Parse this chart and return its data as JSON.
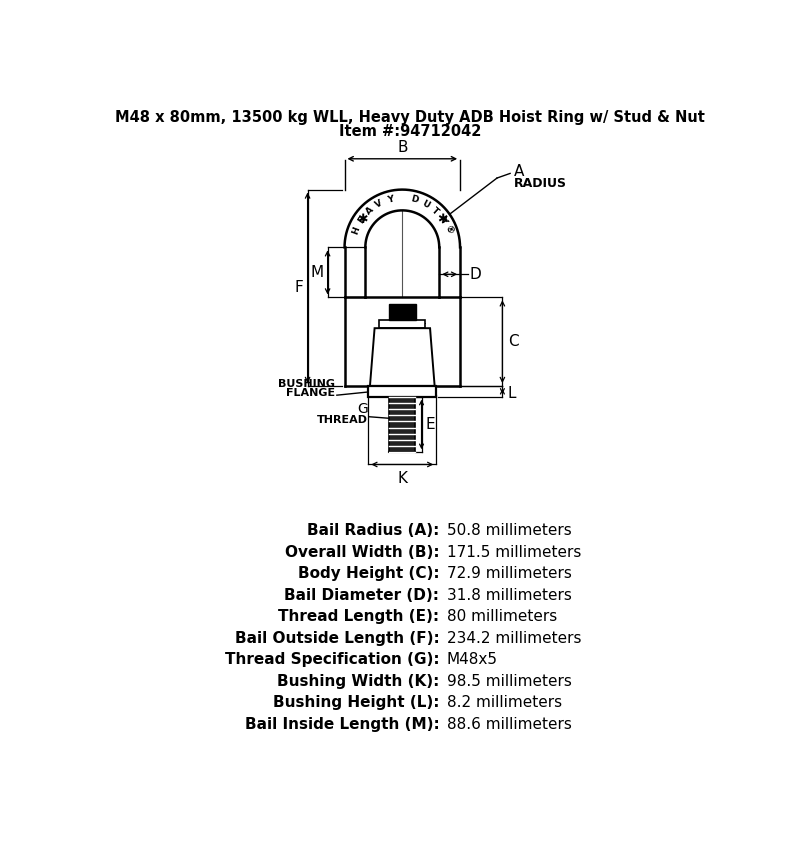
{
  "title_line1": "M48 x 80mm, 13500 kg WLL, Heavy Duty ADB Hoist Ring w/ Stud & Nut",
  "title_line2": "Item #:94712042",
  "specs": [
    {
      "label": "Bail Radius (A):",
      "value": "50.8 millimeters"
    },
    {
      "label": "Overall Width (B):",
      "value": "171.5 millimeters"
    },
    {
      "label": "Body Height (C):",
      "value": "72.9 millimeters"
    },
    {
      "label": "Bail Diameter (D):",
      "value": "31.8 millimeters"
    },
    {
      "label": "Thread Length (E):",
      "value": "80 millimeters"
    },
    {
      "label": "Bail Outside Length (F):",
      "value": "234.2 millimeters"
    },
    {
      "label": "Thread Specification (G):",
      "value": "M48x5"
    },
    {
      "label": "Bushing Width (K):",
      "value": "98.5 millimeters"
    },
    {
      "label": "Bushing Height (L):",
      "value": "8.2 millimeters"
    },
    {
      "label": "Bail Inside Length (M):",
      "value": "88.6 millimeters"
    }
  ],
  "bg_color": "#ffffff",
  "line_color": "#000000"
}
